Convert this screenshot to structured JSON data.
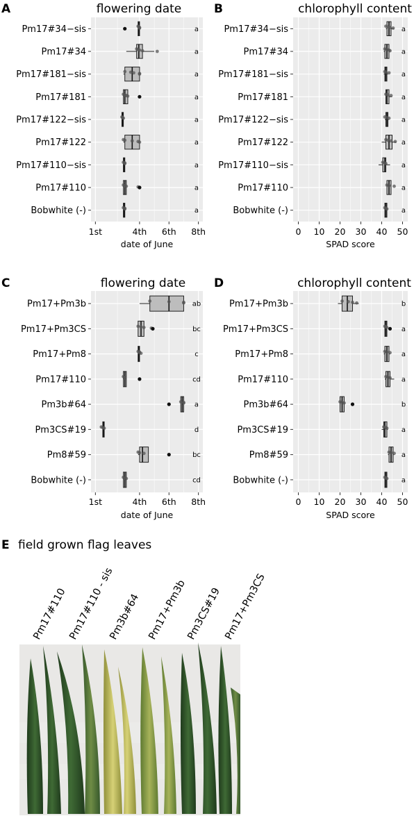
{
  "panels": {
    "A": {
      "letter": "A",
      "title": "flowering date"
    },
    "B": {
      "letter": "B",
      "title": "chlorophyll content"
    },
    "C": {
      "letter": "C",
      "title": "flowering date"
    },
    "D": {
      "letter": "D",
      "title": "chlorophyll content"
    },
    "E": {
      "letter": "E",
      "title": "field grown flag leaves"
    }
  },
  "photo": {
    "labels": [
      "Pm17#110",
      "Pm17#110 - sis",
      "Pm3b#64",
      "Pm17+Pm3b",
      "Pm3CS#19",
      "Pm17+Pm3CS"
    ]
  },
  "colors": {
    "panel_bg": "#ebebeb",
    "grid": "#ffffff",
    "box_fill": "#bdbdbd",
    "point": "#555555",
    "outlier": "#111111"
  },
  "chart_data": [
    {
      "panel": "A",
      "type": "boxplot",
      "title": "flowering date",
      "xlabel": "date of June",
      "xticks": [
        1,
        4,
        6,
        8
      ],
      "xtick_labels": [
        "1st",
        "4th",
        "6th",
        "8th"
      ],
      "xlim": [
        0.7,
        8.3
      ],
      "categories": [
        "Pm17#34−sis",
        "Pm17#34",
        "Pm17#181−sis",
        "Pm17#181",
        "Pm17#122−sis",
        "Pm17#122",
        "Pm17#110−sis",
        "Pm17#110",
        "Bobwhite (-)"
      ],
      "groups": [
        "a",
        "a",
        "a",
        "a",
        "a",
        "a",
        "a",
        "a",
        "a"
      ],
      "boxes": [
        {
          "q1": 3.9,
          "median": 3.95,
          "q3": 4.0,
          "wlo": 3.9,
          "whi": 4.0,
          "outliers": [
            3.0
          ],
          "points": [
            3.9,
            3.95,
            4.0,
            4.0
          ]
        },
        {
          "q1": 3.8,
          "median": 3.95,
          "q3": 4.2,
          "wlo": 3.1,
          "whi": 5.0,
          "outliers": [],
          "points": [
            3.8,
            3.9,
            4.0,
            4.2,
            5.2
          ]
        },
        {
          "q1": 3.0,
          "median": 3.5,
          "q3": 4.0,
          "wlo": 2.9,
          "whi": 4.0,
          "outliers": [],
          "points": [
            3.0,
            3.4,
            3.6,
            4.0,
            4.0
          ]
        },
        {
          "q1": 2.9,
          "median": 3.0,
          "q3": 3.2,
          "wlo": 2.9,
          "whi": 3.2,
          "outliers": [
            4.0
          ],
          "points": [
            2.9,
            3.0,
            3.1,
            3.2
          ]
        },
        {
          "q1": 2.8,
          "median": 2.85,
          "q3": 2.9,
          "wlo": 2.8,
          "whi": 2.9,
          "outliers": [],
          "points": [
            2.8,
            2.85,
            2.9
          ]
        },
        {
          "q1": 3.0,
          "median": 3.5,
          "q3": 4.0,
          "wlo": 2.9,
          "whi": 4.0,
          "outliers": [],
          "points": [
            2.9,
            3.0,
            3.5,
            3.9,
            4.0
          ]
        },
        {
          "q1": 2.9,
          "median": 2.95,
          "q3": 3.0,
          "wlo": 2.9,
          "whi": 3.0,
          "outliers": [],
          "points": [
            2.9,
            3.0,
            3.0
          ]
        },
        {
          "q1": 2.9,
          "median": 3.0,
          "q3": 3.1,
          "wlo": 2.9,
          "whi": 3.1,
          "outliers": [
            4.0
          ],
          "points": [
            2.9,
            3.0,
            3.1,
            3.9
          ]
        },
        {
          "q1": 2.9,
          "median": 2.95,
          "q3": 3.0,
          "wlo": 2.9,
          "whi": 3.0,
          "outliers": [],
          "points": [
            2.9,
            3.0,
            3.0
          ]
        }
      ]
    },
    {
      "panel": "B",
      "type": "boxplot",
      "title": "chlorophyll content",
      "xlabel": "SPAD score",
      "xticks": [
        0,
        10,
        20,
        30,
        40,
        50
      ],
      "xtick_labels": [
        "0",
        "10",
        "20",
        "30",
        "40",
        "50"
      ],
      "xlim": [
        -2.5,
        52.5
      ],
      "categories": [
        "Pm17#34−sis",
        "Pm17#34",
        "Pm17#181−sis",
        "Pm17#181",
        "Pm17#122−sis",
        "Pm17#122",
        "Pm17#110−sis",
        "Pm17#110",
        "Bobwhite (-)"
      ],
      "groups": [
        "a",
        "a",
        "a",
        "a",
        "a",
        "a",
        "a",
        "a",
        "a"
      ],
      "boxes": [
        {
          "q1": 42.5,
          "median": 43.5,
          "q3": 44.5,
          "wlo": 42.0,
          "whi": 46.0,
          "outliers": [],
          "points": [
            42.0,
            43.0,
            44.0,
            45.5
          ]
        },
        {
          "q1": 41.5,
          "median": 42.5,
          "q3": 43.5,
          "wlo": 41.0,
          "whi": 44.0,
          "outliers": [],
          "points": [
            41.5,
            42.5,
            43.5,
            44.0
          ]
        },
        {
          "q1": 41.5,
          "median": 42.0,
          "q3": 42.5,
          "wlo": 41.0,
          "whi": 43.0,
          "outliers": [],
          "points": [
            41.5,
            42.0,
            43.5
          ]
        },
        {
          "q1": 42.0,
          "median": 42.5,
          "q3": 43.5,
          "wlo": 42.0,
          "whi": 45.0,
          "outliers": [],
          "points": [
            42.0,
            43.0,
            44.5
          ]
        },
        {
          "q1": 42.0,
          "median": 42.5,
          "q3": 43.0,
          "wlo": 41.5,
          "whi": 43.5,
          "outliers": [],
          "points": [
            41.5,
            42.5,
            43.5
          ]
        },
        {
          "q1": 42.0,
          "median": 43.5,
          "q3": 45.0,
          "wlo": 40.0,
          "whi": 47.0,
          "outliers": [],
          "points": [
            42.0,
            43.0,
            44.5,
            46.5
          ]
        },
        {
          "q1": 40.5,
          "median": 41.5,
          "q3": 42.0,
          "wlo": 38.5,
          "whi": 44.0,
          "outliers": [],
          "points": [
            40.5,
            41.5,
            42.0
          ]
        },
        {
          "q1": 42.5,
          "median": 43.5,
          "q3": 44.5,
          "wlo": 42.5,
          "whi": 44.5,
          "outliers": [],
          "points": [
            42.5,
            43.5,
            46.0
          ]
        },
        {
          "q1": 41.5,
          "median": 42.0,
          "q3": 42.5,
          "wlo": 41.5,
          "whi": 42.5,
          "outliers": [],
          "points": [
            41.5,
            42.0,
            42.5
          ]
        }
      ]
    },
    {
      "panel": "C",
      "type": "boxplot",
      "title": "flowering date",
      "xlabel": "date of June",
      "xticks": [
        1,
        4,
        6,
        8
      ],
      "xtick_labels": [
        "1st",
        "4th",
        "6th",
        "8th"
      ],
      "xlim": [
        0.7,
        8.3
      ],
      "categories": [
        "Pm17+Pm3b",
        "Pm17+Pm3CS",
        "Pm17+Pm8",
        "Pm17#110",
        "Pm3b#64",
        "Pm3CS#19",
        "Pm8#59",
        "Bobwhite (-)"
      ],
      "groups": [
        "ab",
        "bc",
        "c",
        "cd",
        "a",
        "d",
        "bc",
        "cd"
      ],
      "boxes": [
        {
          "q1": 4.7,
          "median": 6.0,
          "q3": 7.0,
          "wlo": 4.0,
          "whi": 7.0,
          "outliers": [],
          "points": [
            4.7,
            6.0,
            7.0,
            7.0
          ]
        },
        {
          "q1": 3.9,
          "median": 4.1,
          "q3": 4.3,
          "wlo": 3.9,
          "whi": 4.3,
          "outliers": [
            4.9
          ],
          "points": [
            3.9,
            4.1,
            4.3,
            4.8
          ]
        },
        {
          "q1": 3.9,
          "median": 3.95,
          "q3": 4.0,
          "wlo": 3.9,
          "whi": 4.0,
          "outliers": [],
          "points": [
            3.9,
            4.0,
            4.0,
            4.1
          ]
        },
        {
          "q1": 2.9,
          "median": 3.0,
          "q3": 3.1,
          "wlo": 2.9,
          "whi": 3.1,
          "outliers": [
            4.0
          ],
          "points": [
            2.9,
            3.0,
            3.0
          ]
        },
        {
          "q1": 6.8,
          "median": 6.9,
          "q3": 7.0,
          "wlo": 6.8,
          "whi": 7.0,
          "outliers": [
            6.0
          ],
          "points": [
            6.8,
            7.0,
            7.0
          ]
        },
        {
          "q1": 1.5,
          "median": 1.55,
          "q3": 1.6,
          "wlo": 1.5,
          "whi": 1.6,
          "outliers": [],
          "points": [
            1.4,
            1.5,
            1.6
          ]
        },
        {
          "q1": 4.0,
          "median": 4.2,
          "q3": 4.6,
          "wlo": 3.9,
          "whi": 4.6,
          "outliers": [
            6.0
          ],
          "points": [
            3.9,
            4.0,
            4.3
          ]
        },
        {
          "q1": 2.9,
          "median": 3.0,
          "q3": 3.1,
          "wlo": 2.9,
          "whi": 3.1,
          "outliers": [],
          "points": [
            2.9,
            3.0,
            3.1
          ]
        }
      ]
    },
    {
      "panel": "D",
      "type": "boxplot",
      "title": "chlorophyll content",
      "xlabel": "SPAD score",
      "xticks": [
        0,
        10,
        20,
        30,
        40,
        50
      ],
      "xtick_labels": [
        "0",
        "10",
        "20",
        "30",
        "40",
        "50"
      ],
      "xlim": [
        -2.5,
        52.5
      ],
      "categories": [
        "Pm17+Pm3b",
        "Pm17+Pm3CS",
        "Pm17+Pm8",
        "Pm17#110",
        "Pm3b#64",
        "Pm3CS#19",
        "Pm8#59",
        "Bobwhite (-)"
      ],
      "groups": [
        "b",
        "a",
        "a",
        "a",
        "b",
        "a",
        "a",
        "a"
      ],
      "boxes": [
        {
          "q1": 21.0,
          "median": 23.5,
          "q3": 26.0,
          "wlo": 19.0,
          "whi": 29.0,
          "outliers": [],
          "points": [
            21.0,
            24.0,
            26.0,
            28.0
          ]
        },
        {
          "q1": 41.5,
          "median": 42.0,
          "q3": 42.5,
          "wlo": 41.5,
          "whi": 42.5,
          "outliers": [
            44.0
          ],
          "points": [
            41.5,
            42.0,
            42.5
          ]
        },
        {
          "q1": 41.5,
          "median": 42.5,
          "q3": 43.5,
          "wlo": 41.0,
          "whi": 44.0,
          "outliers": [],
          "points": [
            41.5,
            42.5,
            44.0
          ]
        },
        {
          "q1": 42.0,
          "median": 43.0,
          "q3": 44.0,
          "wlo": 41.5,
          "whi": 46.0,
          "outliers": [],
          "points": [
            42.0,
            43.0,
            44.0
          ]
        },
        {
          "q1": 20.0,
          "median": 21.0,
          "q3": 22.0,
          "wlo": 20.0,
          "whi": 22.0,
          "outliers": [
            26.0
          ],
          "points": [
            20.0,
            21.0,
            22.0
          ]
        },
        {
          "q1": 41.0,
          "median": 41.5,
          "q3": 42.5,
          "wlo": 40.0,
          "whi": 43.0,
          "outliers": [],
          "points": [
            41.0,
            42.0,
            42.5
          ]
        },
        {
          "q1": 43.5,
          "median": 44.5,
          "q3": 45.5,
          "wlo": 43.0,
          "whi": 46.0,
          "outliers": [],
          "points": [
            43.5,
            44.5,
            46.0
          ]
        },
        {
          "q1": 41.5,
          "median": 42.0,
          "q3": 42.5,
          "wlo": 41.5,
          "whi": 42.5,
          "outliers": [],
          "points": [
            41.5,
            42.0,
            42.5
          ]
        }
      ]
    }
  ]
}
